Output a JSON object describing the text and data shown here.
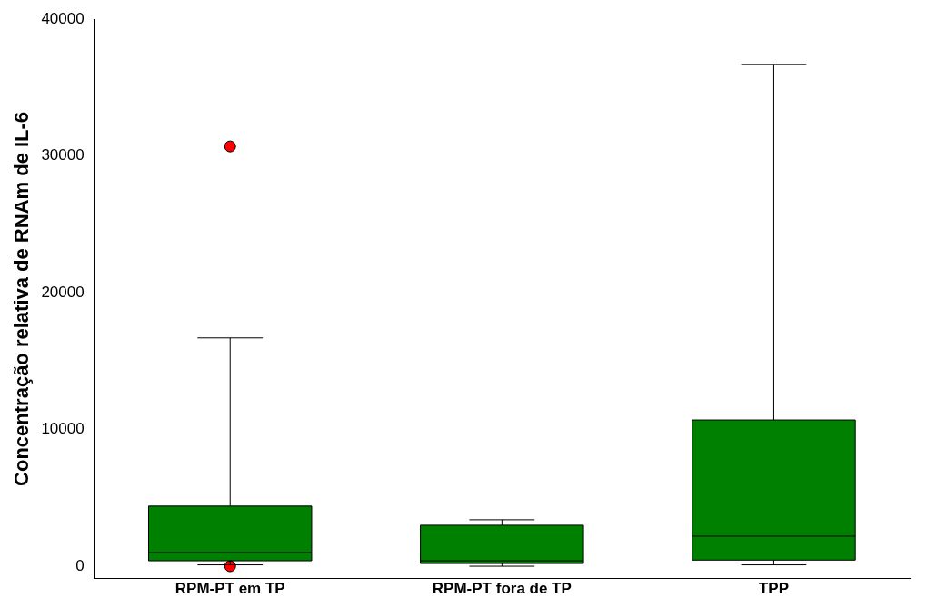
{
  "chart_data": {
    "type": "box",
    "ylabel": "Concentração relativa de RNAm de IL-6",
    "categories": [
      "RPM-PT em TP",
      "RPM-PT fora de TP",
      "TPP"
    ],
    "color": "#008000",
    "boxes": [
      {
        "low": 100,
        "q1": 400,
        "median": 1000,
        "q3": 4400,
        "high": 16700
      },
      {
        "low": 0,
        "q1": 200,
        "median": 400,
        "q3": 3000,
        "high": 3400
      },
      {
        "low": 100,
        "q1": 450,
        "median": 2200,
        "q3": 10700,
        "high": 36700
      }
    ],
    "series": [
      {
        "type": "scatter",
        "color": "#ff0000",
        "x": [
          "RPM-PT em TP",
          "RPM-PT em TP"
        ],
        "values": [
          30700,
          0
        ]
      }
    ],
    "ylim": [
      -900,
      40000
    ],
    "yticks": [
      0,
      10000,
      20000,
      30000,
      40000
    ],
    "grid": false,
    "legend": false
  }
}
